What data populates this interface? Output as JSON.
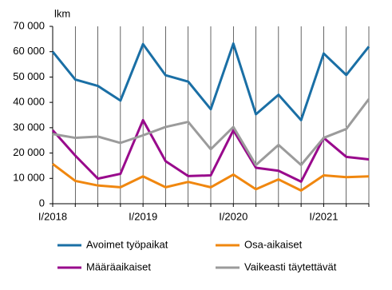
{
  "chart_data": {
    "type": "line",
    "unit_label": "lkm",
    "categories": [
      "I/2018",
      null,
      null,
      null,
      "I/2019",
      null,
      null,
      null,
      "I/2020",
      null,
      null,
      null,
      "I/2021",
      null,
      null
    ],
    "series": [
      {
        "name": "Avoimet työpaikat",
        "color": "#1a6fa5",
        "values": [
          60000,
          49000,
          46500,
          40700,
          63000,
          50700,
          48200,
          37300,
          63200,
          35300,
          43000,
          33000,
          59300,
          50800,
          62000
        ]
      },
      {
        "name": "Osa-aikaiset",
        "color": "#f0870f",
        "values": [
          15700,
          9000,
          7200,
          6500,
          10800,
          6500,
          8600,
          6500,
          11500,
          5700,
          9600,
          5200,
          11200,
          10500,
          10800
        ]
      },
      {
        "name": "Määräaikaiset",
        "color": "#990a8c",
        "values": [
          29000,
          19000,
          9900,
          11800,
          33000,
          16800,
          10900,
          11200,
          29000,
          14200,
          13000,
          8700,
          26000,
          18500,
          17500
        ]
      },
      {
        "name": "Vaikeasti täytettävät",
        "color": "#9b9b9b",
        "values": [
          27500,
          26000,
          26500,
          24000,
          27000,
          30300,
          32300,
          21500,
          30300,
          15300,
          23200,
          15300,
          26000,
          29500,
          41300
        ]
      }
    ],
    "ylim": [
      0,
      70000
    ],
    "yticks": [
      0,
      {
        "value": 10000,
        "label": "10 000"
      },
      {
        "value": 20000,
        "label": "20 000"
      },
      {
        "value": 30000,
        "label": "30 000"
      },
      {
        "value": 40000,
        "label": "40 000"
      },
      {
        "value": 50000,
        "label": "50 000"
      },
      {
        "value": 60000,
        "label": "60 000"
      },
      {
        "value": 70000,
        "label": "70 000"
      }
    ],
    "grid": true
  }
}
